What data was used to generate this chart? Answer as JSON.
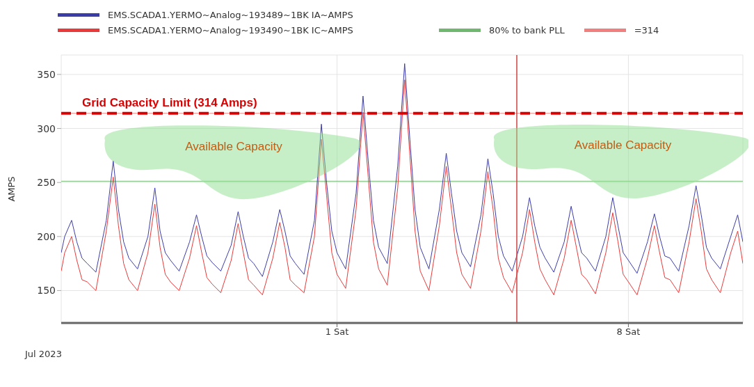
{
  "chart_data": {
    "type": "line",
    "ylabel": "AMPS",
    "xlabel": "Jul 2023",
    "legend": "top left",
    "grid": true,
    "line_style": "solid",
    "marker": "none",
    "x": [
      "2023-06-24T09:00",
      "2023-06-24T11:00",
      "2023-06-24T15:00",
      "2023-06-24T18:00",
      "2023-06-24T21:00",
      "2023-06-25T00:00",
      "2023-06-25T05:00",
      "2023-06-25T11:00",
      "2023-06-25T15:00",
      "2023-06-25T18:00",
      "2023-06-25T21:00",
      "2023-06-26T00:00",
      "2023-06-26T05:00",
      "2023-06-26T11:00",
      "2023-06-26T15:00",
      "2023-06-26T18:00",
      "2023-06-26T21:00",
      "2023-06-27T00:00",
      "2023-06-27T05:00",
      "2023-06-27T11:00",
      "2023-06-27T15:00",
      "2023-06-27T18:00",
      "2023-06-27T21:00",
      "2023-06-28T00:00",
      "2023-06-28T05:00",
      "2023-06-28T11:00",
      "2023-06-28T15:00",
      "2023-06-28T18:00",
      "2023-06-28T21:00",
      "2023-06-29T00:00",
      "2023-06-29T05:00",
      "2023-06-29T11:00",
      "2023-06-29T15:00",
      "2023-06-29T18:00",
      "2023-06-29T21:00",
      "2023-06-30T00:00",
      "2023-06-30T05:00",
      "2023-06-30T11:00",
      "2023-06-30T15:00",
      "2023-06-30T18:00",
      "2023-06-30T21:00",
      "2023-07-01T00:00",
      "2023-07-01T05:00",
      "2023-07-01T11:00",
      "2023-07-01T15:00",
      "2023-07-01T18:00",
      "2023-07-01T21:00",
      "2023-07-02T00:00",
      "2023-07-02T05:00",
      "2023-07-02T11:00",
      "2023-07-02T15:00",
      "2023-07-02T18:00",
      "2023-07-02T21:00",
      "2023-07-03T00:00",
      "2023-07-03T05:00",
      "2023-07-03T11:00",
      "2023-07-03T15:00",
      "2023-07-03T18:00",
      "2023-07-03T21:00",
      "2023-07-04T00:00",
      "2023-07-04T05:00",
      "2023-07-04T11:00",
      "2023-07-04T15:00",
      "2023-07-04T18:00",
      "2023-07-04T21:00",
      "2023-07-05T00:00",
      "2023-07-05T05:00",
      "2023-07-05T11:00",
      "2023-07-05T15:00",
      "2023-07-05T18:00",
      "2023-07-05T21:00",
      "2023-07-06T00:00",
      "2023-07-06T05:00",
      "2023-07-06T11:00",
      "2023-07-06T15:00",
      "2023-07-06T18:00",
      "2023-07-06T21:00",
      "2023-07-07T00:00",
      "2023-07-07T05:00",
      "2023-07-07T11:00",
      "2023-07-07T15:00",
      "2023-07-07T18:00",
      "2023-07-07T21:00",
      "2023-07-08T00:00",
      "2023-07-08T05:00",
      "2023-07-08T11:00",
      "2023-07-08T15:00",
      "2023-07-08T18:00",
      "2023-07-08T21:00",
      "2023-07-09T00:00",
      "2023-07-09T05:00",
      "2023-07-09T11:00",
      "2023-07-09T15:00",
      "2023-07-09T18:00",
      "2023-07-09T21:00",
      "2023-07-10T00:00",
      "2023-07-10T05:00",
      "2023-07-10T11:00",
      "2023-07-10T15:00",
      "2023-07-10T18:00"
    ],
    "series": [
      {
        "name": "EMS.SCADA1.YERMO~Analog~193489~1BK IA~AMPS",
        "color": "#3c3ca8",
        "values": [
          185,
          200,
          215,
          195,
          180,
          175,
          167,
          215,
          270,
          225,
          195,
          180,
          170,
          200,
          245,
          205,
          185,
          178,
          168,
          195,
          220,
          200,
          182,
          176,
          168,
          192,
          223,
          200,
          180,
          175,
          163,
          195,
          225,
          205,
          182,
          175,
          165,
          215,
          304,
          250,
          205,
          185,
          170,
          240,
          330,
          270,
          215,
          190,
          175,
          265,
          360,
          290,
          225,
          190,
          170,
          225,
          277,
          240,
          205,
          185,
          172,
          220,
          272,
          240,
          200,
          182,
          168,
          200,
          236,
          210,
          190,
          180,
          167,
          195,
          228,
          205,
          185,
          180,
          168,
          200,
          236,
          210,
          185,
          178,
          166,
          195,
          221,
          200,
          182,
          180,
          168,
          210,
          247,
          220,
          190,
          180,
          170,
          200,
          220,
          195
        ]
      },
      {
        "name": "EMS.SCADA1.YERMO~Analog~193490~1BK IC~AMPS",
        "color": "#e83a3a",
        "values": [
          168,
          185,
          200,
          178,
          160,
          158,
          150,
          205,
          255,
          210,
          175,
          160,
          150,
          185,
          230,
          190,
          165,
          158,
          150,
          180,
          210,
          185,
          162,
          156,
          148,
          178,
          212,
          185,
          160,
          155,
          146,
          180,
          213,
          190,
          160,
          155,
          148,
          200,
          290,
          238,
          185,
          165,
          152,
          225,
          315,
          255,
          195,
          170,
          155,
          245,
          345,
          275,
          205,
          168,
          150,
          210,
          265,
          225,
          185,
          165,
          152,
          205,
          260,
          225,
          180,
          162,
          148,
          185,
          225,
          195,
          170,
          160,
          146,
          180,
          215,
          190,
          165,
          160,
          147,
          185,
          222,
          195,
          165,
          158,
          146,
          180,
          210,
          185,
          162,
          160,
          148,
          195,
          235,
          205,
          170,
          160,
          148,
          185,
          205,
          175
        ]
      }
    ],
    "xlim": [
      "2023-06-24T09:00",
      "2023-07-10T18:00"
    ],
    "xticks": [
      {
        "value": "2023-07-01",
        "label": "1 Sat"
      },
      {
        "value": "2023-07-08",
        "label": "8 Sat"
      }
    ],
    "ylim": [
      120,
      368
    ],
    "yticks": [
      150,
      200,
      250,
      300,
      350
    ],
    "ref_lines": [
      {
        "axis": "y",
        "value": 251.2,
        "label": "80% to bank PLL",
        "color": "#70b870"
      },
      {
        "axis": "y",
        "value": 314,
        "label": "=314",
        "color": "#f08080"
      },
      {
        "axis": "y",
        "value": 314,
        "label": "Grid Capacity Limit (314 Amps)",
        "color": "#dd0000",
        "line_style": "dashed"
      },
      {
        "axis": "x",
        "value": "2023-07-05T07:40",
        "color": "#d04040"
      }
    ],
    "annotations": [
      "Available Capacity",
      "Available Capacity"
    ]
  }
}
